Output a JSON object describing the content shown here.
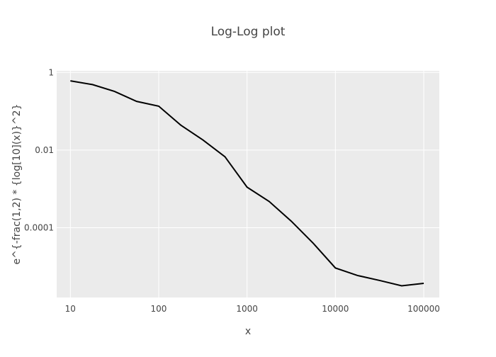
{
  "chart_data": {
    "type": "line",
    "title": "Log-Log plot",
    "xlabel": "x",
    "ylabel": "e^{-frac(1,2) * {log[10](x)}^2}",
    "x_scale": "log",
    "y_scale": "log",
    "xlim": [
      7,
      150000
    ],
    "ylim": [
      1.6e-06,
      1.1
    ],
    "x_ticks": [
      10,
      100,
      1000,
      10000,
      100000
    ],
    "x_tick_labels": [
      "10",
      "100",
      "1000",
      "10000",
      "100000"
    ],
    "y_ticks": [
      1,
      0.01,
      0.0001
    ],
    "y_tick_labels": [
      "1",
      "0.01",
      "0.0001"
    ],
    "grid": true,
    "legend": "none",
    "colors": {
      "line": "#000000",
      "plot_background": "#ebebeb",
      "grid": "#ffffff"
    },
    "series": [
      {
        "x": [
          10,
          17.78,
          31.62,
          56.23,
          100,
          177.8,
          316.2,
          562.3,
          1000,
          1778,
          3162,
          5623,
          10000,
          17783,
          31623,
          56234,
          100000
        ],
        "y": [
          0.6065,
          0.4868,
          0.3247,
          0.1799,
          0.1353,
          0.0439,
          0.0183,
          0.00674,
          0.00111,
          0.000476,
          0.000148,
          3.97e-05,
          9.21e-06,
          5.9e-06,
          4.4e-06,
          3.2e-06,
          3.7e-06
        ]
      }
    ]
  }
}
